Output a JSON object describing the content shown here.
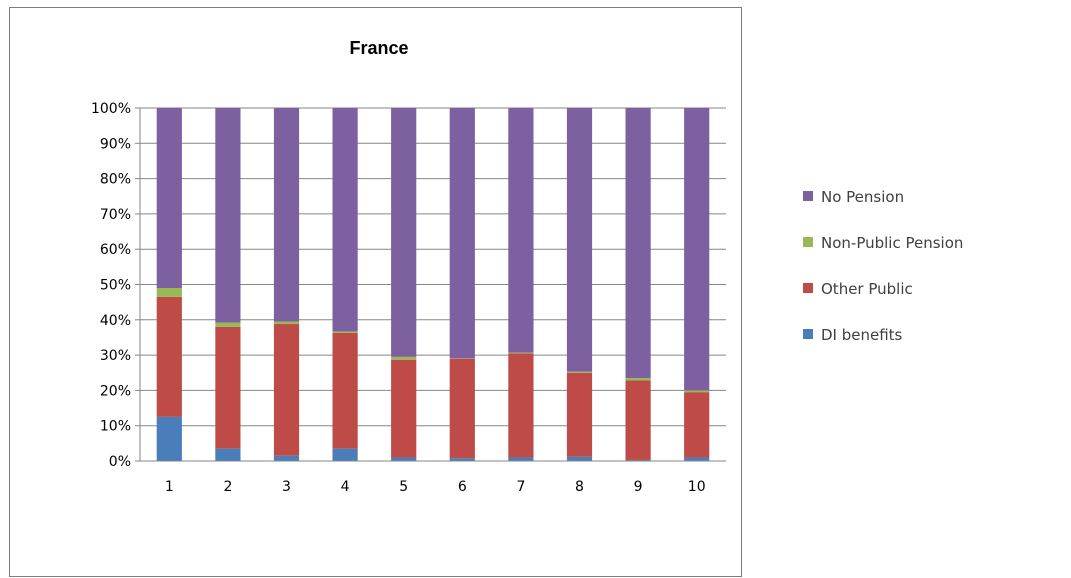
{
  "chart_data": {
    "type": "bar",
    "stacked": true,
    "normalized": true,
    "title": "France",
    "xlabel": "",
    "ylabel": "",
    "categories": [
      "1",
      "2",
      "3",
      "4",
      "5",
      "6",
      "7",
      "8",
      "9",
      "10"
    ],
    "ylim": [
      0,
      100
    ],
    "yticks": [
      "0%",
      "10%",
      "20%",
      "30%",
      "40%",
      "50%",
      "60%",
      "70%",
      "80%",
      "90%",
      "100%"
    ],
    "grid": true,
    "legend_position": "right",
    "series": [
      {
        "name": "DI benefits",
        "color": "#4a7ebb",
        "values": [
          12.5,
          3.5,
          1.5,
          3.5,
          1.0,
          0.8,
          1.0,
          1.2,
          0.3,
          1.0
        ]
      },
      {
        "name": "Other Public",
        "color": "#be4b48",
        "values": [
          34.0,
          34.5,
          37.3,
          32.8,
          27.7,
          28.2,
          29.5,
          23.8,
          22.5,
          18.5
        ]
      },
      {
        "name": "Non-Public Pension",
        "color": "#98b954",
        "values": [
          2.5,
          1.2,
          0.7,
          0.4,
          0.8,
          0.1,
          0.2,
          0.3,
          0.7,
          0.5
        ]
      },
      {
        "name": "No Pension",
        "color": "#7d60a0",
        "values": [
          51.0,
          60.8,
          60.5,
          63.3,
          70.5,
          70.9,
          69.3,
          74.7,
          76.5,
          80.0
        ]
      }
    ]
  }
}
